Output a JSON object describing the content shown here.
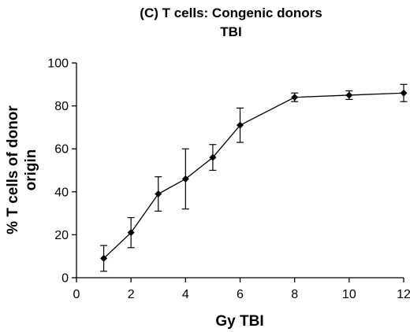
{
  "chart_data": {
    "type": "line",
    "title": "(C) T cells: Congenic donors",
    "subtitle": "TBI",
    "xlabel": "Gy TBI",
    "ylabel_lines": [
      "% T cells of donor",
      "origin"
    ],
    "xlim": [
      0,
      12
    ],
    "ylim": [
      0,
      100
    ],
    "x_ticks": [
      0,
      2,
      4,
      6,
      8,
      10,
      12
    ],
    "y_ticks": [
      0,
      20,
      40,
      60,
      80,
      100
    ],
    "grid": false,
    "marker": "diamond",
    "series": [
      {
        "x": [
          1,
          2,
          3,
          4,
          5,
          6,
          8,
          10,
          12
        ],
        "y": [
          9,
          21,
          39,
          46,
          56,
          71,
          84,
          85,
          86
        ],
        "err_upper": [
          15,
          28,
          47,
          60,
          62,
          79,
          86,
          87,
          90
        ],
        "err_lower": [
          3,
          14,
          31,
          32,
          50,
          63,
          82,
          83,
          82
        ]
      }
    ]
  }
}
